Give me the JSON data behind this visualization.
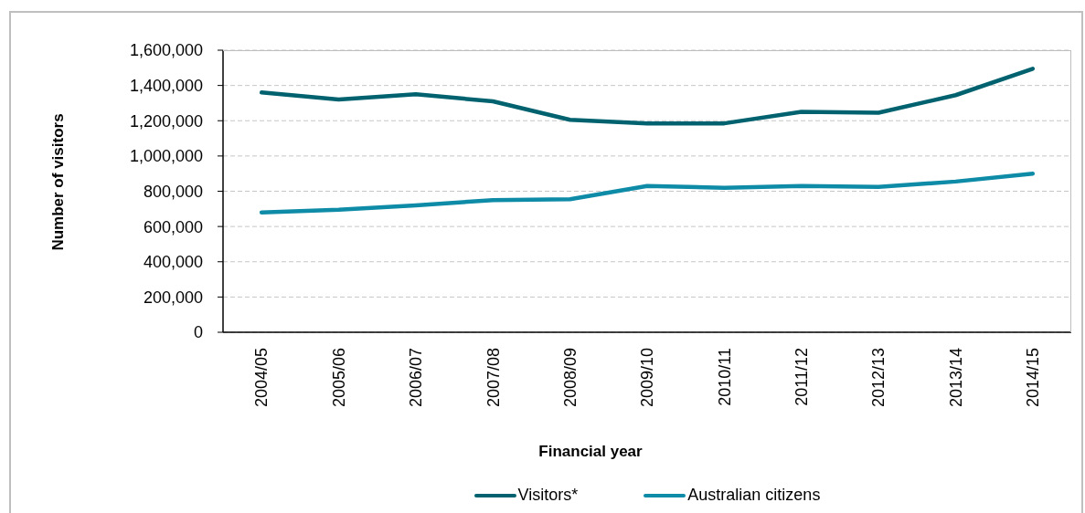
{
  "chart_data": {
    "type": "line",
    "xlabel": "Financial year",
    "ylabel": "Number of visitors",
    "categories": [
      "2004/05",
      "2005/06",
      "2006/07",
      "2007/08",
      "2008/09",
      "2009/10",
      "2010/11",
      "2011/12",
      "2012/13",
      "2013/14",
      "2014/15"
    ],
    "series": [
      {
        "name": "Visitors*",
        "color": "#00626f",
        "values": [
          1360000,
          1320000,
          1350000,
          1310000,
          1205000,
          1185000,
          1185000,
          1250000,
          1245000,
          1345000,
          1495000
        ]
      },
      {
        "name": "Australian citizens",
        "color": "#0e8ba7",
        "values": [
          680000,
          695000,
          720000,
          750000,
          755000,
          830000,
          820000,
          830000,
          825000,
          855000,
          900000
        ]
      }
    ],
    "ylim": [
      0,
      1600000
    ],
    "yticks": [
      {
        "value": 0,
        "label": "0"
      },
      {
        "value": 200000,
        "label": "200,000"
      },
      {
        "value": 400000,
        "label": "400,000"
      },
      {
        "value": 600000,
        "label": "600,000"
      },
      {
        "value": 800000,
        "label": "800,000"
      },
      {
        "value": 1000000,
        "label": "1,000,000"
      },
      {
        "value": 1200000,
        "label": "1,200,000"
      },
      {
        "value": 1400000,
        "label": "1,400,000"
      },
      {
        "value": 1600000,
        "label": "1,600,000"
      }
    ],
    "grid": "y",
    "legend": "bottom"
  }
}
